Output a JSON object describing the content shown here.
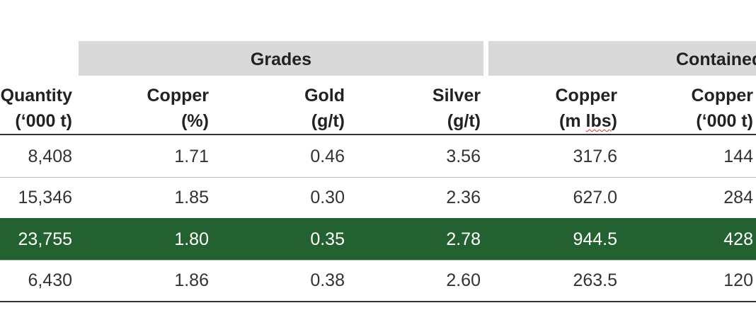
{
  "table": {
    "groups": [
      "Grades",
      "Contained"
    ],
    "columns": [
      [
        "Quantity",
        "(‘000 t)"
      ],
      [
        "Copper",
        "(%)"
      ],
      [
        "Gold",
        "(g/t)"
      ],
      [
        "Silver",
        "(g/t)"
      ],
      [
        "Copper",
        "(m lbs)"
      ],
      [
        "Copper",
        "(‘000 t)"
      ]
    ],
    "rows": [
      [
        "8,408",
        "1.71",
        "0.46",
        "3.56",
        "317.6",
        "144"
      ],
      [
        "15,346",
        "1.85",
        "0.30",
        "2.36",
        "627.0",
        "284"
      ],
      [
        "23,755",
        "1.80",
        "0.35",
        "2.78",
        "944.5",
        "428"
      ],
      [
        "6,430",
        "1.86",
        "0.38",
        "2.60",
        "263.5",
        "120"
      ]
    ]
  }
}
